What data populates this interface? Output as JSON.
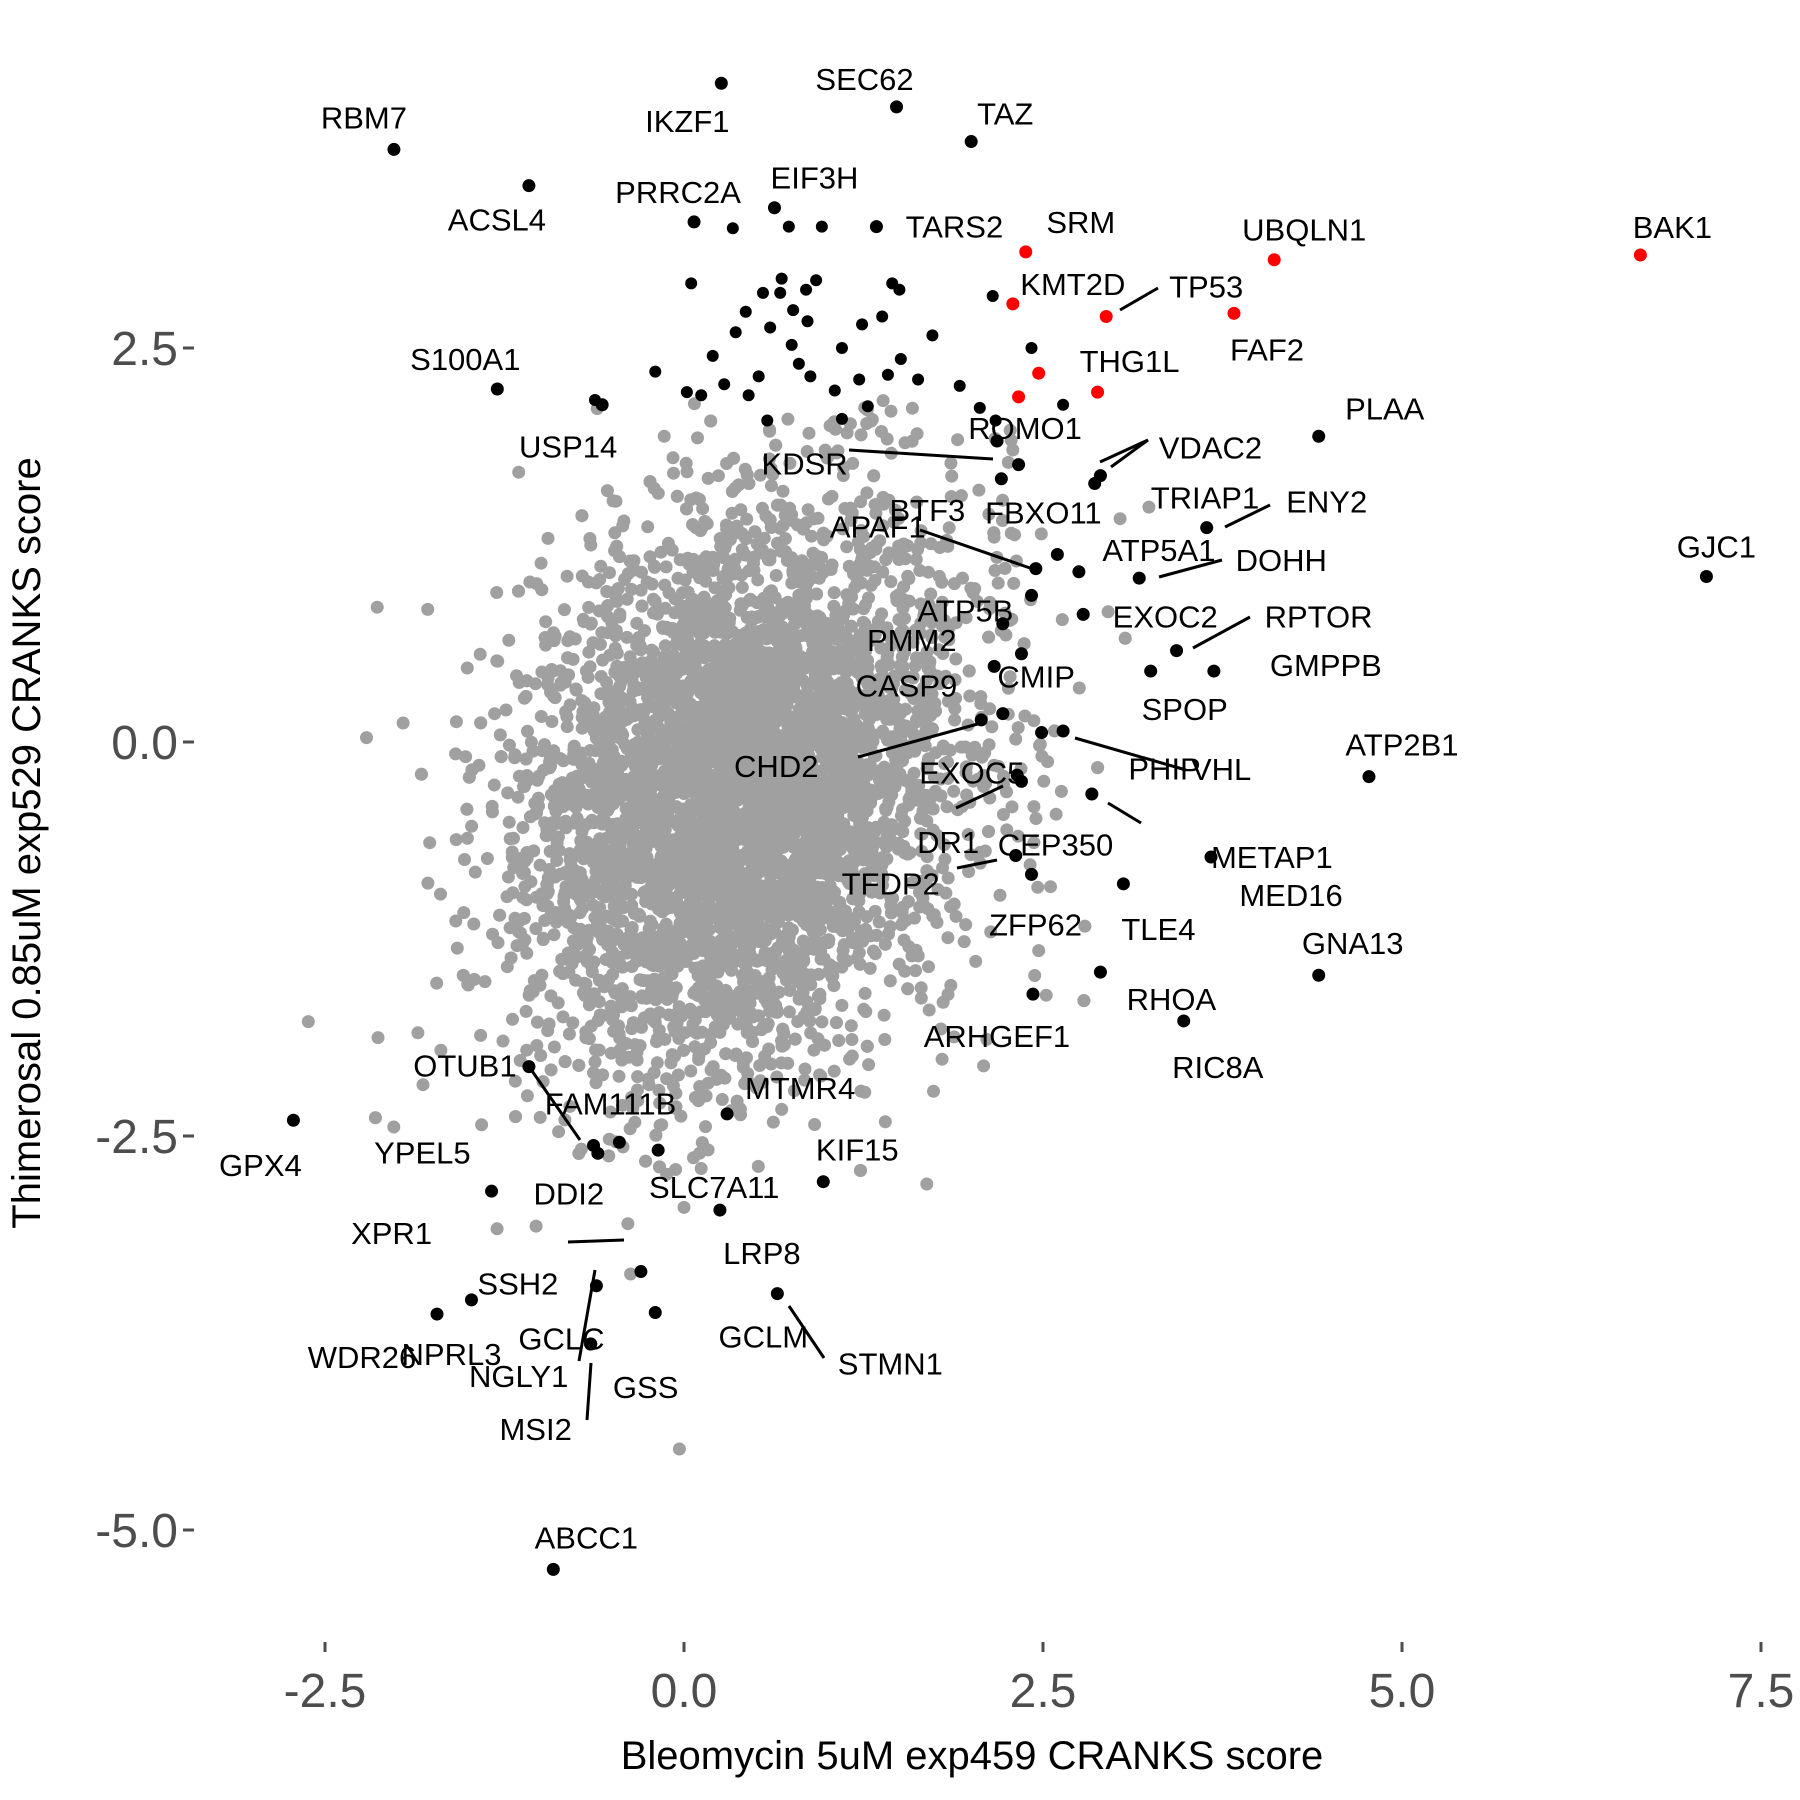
{
  "chart_data": {
    "type": "scatter",
    "title": "",
    "xlabel": "Bleomycin 5uM exp459 CRANKS score",
    "ylabel": "Thimerosal 0.85uM exp529 CRANKS score",
    "xlim": [
      -3.5,
      7.5
    ],
    "ylim": [
      -5.7,
      4.6
    ],
    "x_ticks": [
      -2.5,
      0.0,
      2.5,
      5.0,
      7.5
    ],
    "x_tick_labels": [
      "-2.5",
      "0.0",
      "2.5",
      "5.0",
      "7.5"
    ],
    "y_ticks": [
      -5.0,
      -2.5,
      0.0,
      2.5
    ],
    "y_tick_labels": [
      "-5.0",
      "-2.5",
      "0.0",
      "2.5"
    ],
    "grid": false,
    "legend": "none",
    "colors": {
      "background_points": "#a0a0a0",
      "labeled_points": "#000000",
      "highlight_points": "#ff0000",
      "text": "#000000",
      "tick_text": "#4d4d4d"
    },
    "background_cloud": {
      "description_of_data": "about 18000 genes scattered around the origin in grey",
      "center": [
        0.4,
        -0.3
      ],
      "sd": [
        0.75,
        0.85
      ],
      "count": 5200
    },
    "highlighted_genes": [
      {
        "gene": "BAK1",
        "x": 6.66,
        "y": 3.09
      },
      {
        "gene": "UBQLN1",
        "x": 4.11,
        "y": 3.06
      },
      {
        "gene": "SRM",
        "x": 2.38,
        "y": 3.11
      },
      {
        "gene": "KMT2D",
        "x": 2.29,
        "y": 2.78
      },
      {
        "gene": "TP53",
        "x": 2.94,
        "y": 2.7
      },
      {
        "gene": "FAF2",
        "x": 3.83,
        "y": 2.72
      },
      {
        "gene": "THG1L",
        "x": 2.88,
        "y": 2.22
      },
      {
        "gene": "",
        "x": 2.47,
        "y": 2.34
      },
      {
        "gene": "",
        "x": 2.33,
        "y": 2.19
      }
    ],
    "labeled_genes": [
      {
        "gene": "RBM7",
        "x": -2.02,
        "y": 3.76
      },
      {
        "gene": "ACSL4",
        "x": -1.08,
        "y": 3.53
      },
      {
        "gene": "IKZF1",
        "x": 0.26,
        "y": 4.18
      },
      {
        "gene": "SEC62",
        "x": 1.48,
        "y": 4.03
      },
      {
        "gene": "TAZ",
        "x": 2.0,
        "y": 3.81
      },
      {
        "gene": "PRRC2A",
        "x": 0.07,
        "y": 3.3
      },
      {
        "gene": "EIF3H",
        "x": 0.63,
        "y": 3.39
      },
      {
        "gene": "TARS2",
        "x": 1.34,
        "y": 3.27
      },
      {
        "gene": "S100A1",
        "x": -1.3,
        "y": 2.24
      },
      {
        "gene": "USP14",
        "x": -0.57,
        "y": 2.14
      },
      {
        "gene": "KDSR",
        "x": 2.33,
        "y": 1.76
      },
      {
        "gene": "ROMO1",
        "x": 2.18,
        "y": 1.91
      },
      {
        "gene": "BTF3",
        "x": 2.21,
        "y": 1.67
      },
      {
        "gene": "VDAC2",
        "x": 2.9,
        "y": 1.69
      },
      {
        "gene": "TRIAP1",
        "x": 2.86,
        "y": 1.64
      },
      {
        "gene": "PLAA",
        "x": 4.42,
        "y": 1.94
      },
      {
        "gene": "ENY2",
        "x": 3.64,
        "y": 1.36
      },
      {
        "gene": "APAF1",
        "x": 2.45,
        "y": 1.1
      },
      {
        "gene": "FBXO11",
        "x": 2.6,
        "y": 1.19
      },
      {
        "gene": "ATP5A1",
        "x": 2.75,
        "y": 1.08
      },
      {
        "gene": "DOHH",
        "x": 3.17,
        "y": 1.04
      },
      {
        "gene": "GJC1",
        "x": 7.12,
        "y": 1.05
      },
      {
        "gene": "ATP5B",
        "x": 2.42,
        "y": 0.93
      },
      {
        "gene": "EXOC2",
        "x": 2.78,
        "y": 0.81
      },
      {
        "gene": "RPTOR",
        "x": 3.43,
        "y": 0.58
      },
      {
        "gene": "PMM2",
        "x": 2.22,
        "y": 0.75
      },
      {
        "gene": "CMIP",
        "x": 2.16,
        "y": 0.48
      },
      {
        "gene": "GMPPB",
        "x": 3.69,
        "y": 0.45
      },
      {
        "gene": "SPOP",
        "x": 3.25,
        "y": 0.45
      },
      {
        "gene": "CASP9",
        "x": 2.35,
        "y": 0.56
      },
      {
        "gene": "CHD2",
        "x": 2.07,
        "y": 0.14
      },
      {
        "gene": "EXOC5",
        "x": 2.22,
        "y": 0.18
      },
      {
        "gene": "VHL",
        "x": 2.64,
        "y": 0.07
      },
      {
        "gene": "PHIP",
        "x": 2.49,
        "y": 0.06
      },
      {
        "gene": "ATP2B1",
        "x": 4.77,
        "y": -0.22
      },
      {
        "gene": "DR1",
        "x": 2.32,
        "y": -0.21
      },
      {
        "gene": "CEP350",
        "x": 2.35,
        "y": -0.25
      },
      {
        "gene": "METAP1",
        "x": 2.84,
        "y": -0.33
      },
      {
        "gene": "MED16",
        "x": 3.67,
        "y": -0.73
      },
      {
        "gene": "TFDP2",
        "x": 2.31,
        "y": -0.72
      },
      {
        "gene": "ZFP62",
        "x": 2.42,
        "y": -0.84
      },
      {
        "gene": "TLE4",
        "x": 3.06,
        "y": -0.9
      },
      {
        "gene": "GNA13",
        "x": 4.42,
        "y": -1.48
      },
      {
        "gene": "RHOA",
        "x": 2.9,
        "y": -1.46
      },
      {
        "gene": "ARHGEF1",
        "x": 2.43,
        "y": -1.6
      },
      {
        "gene": "RIC8A",
        "x": 3.48,
        "y": -1.77
      },
      {
        "gene": "OTUB1",
        "x": -1.08,
        "y": -2.06
      },
      {
        "gene": "FAM111B",
        "x": -0.63,
        "y": -2.56
      },
      {
        "gene": "MTMR4",
        "x": 0.3,
        "y": -2.36
      },
      {
        "gene": "GPX4",
        "x": -2.72,
        "y": -2.4
      },
      {
        "gene": "YPEL5",
        "x": -0.45,
        "y": -2.54
      },
      {
        "gene": "DDI2",
        "x": -0.6,
        "y": -2.61
      },
      {
        "gene": "SLC7A11",
        "x": -0.18,
        "y": -2.59
      },
      {
        "gene": "KIF15",
        "x": 0.97,
        "y": -2.79
      },
      {
        "gene": "XPR1",
        "x": -1.34,
        "y": -2.85
      },
      {
        "gene": "LRP8",
        "x": 0.25,
        "y": -2.97
      },
      {
        "gene": "SSH2",
        "x": -0.3,
        "y": -3.36
      },
      {
        "gene": "GCLC",
        "x": -0.61,
        "y": -3.45
      },
      {
        "gene": "NPRL3",
        "x": -1.48,
        "y": -3.54
      },
      {
        "gene": "WDR26",
        "x": -1.72,
        "y": -3.63
      },
      {
        "gene": "GCLM",
        "x": -0.2,
        "y": -3.62
      },
      {
        "gene": "STMN1",
        "x": 0.65,
        "y": -3.5
      },
      {
        "gene": "NGLY1",
        "x": -0.65,
        "y": -3.82
      },
      {
        "gene": "GSS",
        "x": -0.65,
        "y": -3.82
      },
      {
        "gene": "MSI2",
        "x": -0.65,
        "y": -3.82
      },
      {
        "gene": "ABCC1",
        "x": -0.91,
        "y": -5.25
      }
    ],
    "other_hit_points": [
      [
        0.34,
        3.26
      ],
      [
        0.73,
        3.27
      ],
      [
        0.96,
        3.27
      ],
      [
        0.05,
        2.91
      ],
      [
        0.68,
        2.94
      ],
      [
        0.92,
        2.93
      ],
      [
        1.45,
        2.91
      ],
      [
        1.5,
        2.87
      ],
      [
        0.55,
        2.85
      ],
      [
        0.67,
        2.85
      ],
      [
        0.85,
        2.87
      ],
      [
        0.76,
        2.74
      ],
      [
        0.43,
        2.73
      ],
      [
        0.6,
        2.63
      ],
      [
        0.86,
        2.67
      ],
      [
        1.24,
        2.65
      ],
      [
        1.38,
        2.7
      ],
      [
        0.2,
        2.45
      ],
      [
        0.75,
        2.52
      ],
      [
        1.1,
        2.5
      ],
      [
        1.51,
        2.43
      ],
      [
        0.88,
        2.32
      ],
      [
        1.22,
        2.3
      ],
      [
        1.42,
        2.33
      ],
      [
        0.52,
        2.32
      ],
      [
        -0.2,
        2.35
      ],
      [
        0.28,
        2.27
      ],
      [
        0.12,
        2.2
      ],
      [
        0.45,
        2.2
      ],
      [
        1.05,
        2.23
      ],
      [
        1.63,
        2.3
      ],
      [
        1.92,
        2.26
      ],
      [
        0.02,
        2.22
      ],
      [
        0.58,
        2.04
      ],
      [
        1.28,
        2.13
      ],
      [
        -0.62,
        2.17
      ],
      [
        2.64,
        2.14
      ],
      [
        2.42,
        2.5
      ],
      [
        2.15,
        2.83
      ],
      [
        2.17,
        2.04
      ],
      [
        2.06,
        2.12
      ],
      [
        1.73,
        2.58
      ],
      [
        0.8,
        2.4
      ],
      [
        0.36,
        2.6
      ],
      [
        1.1,
        2.05
      ]
    ],
    "label_positions_data_units": "labels placed next to their points; leader lines connect offset labels"
  }
}
